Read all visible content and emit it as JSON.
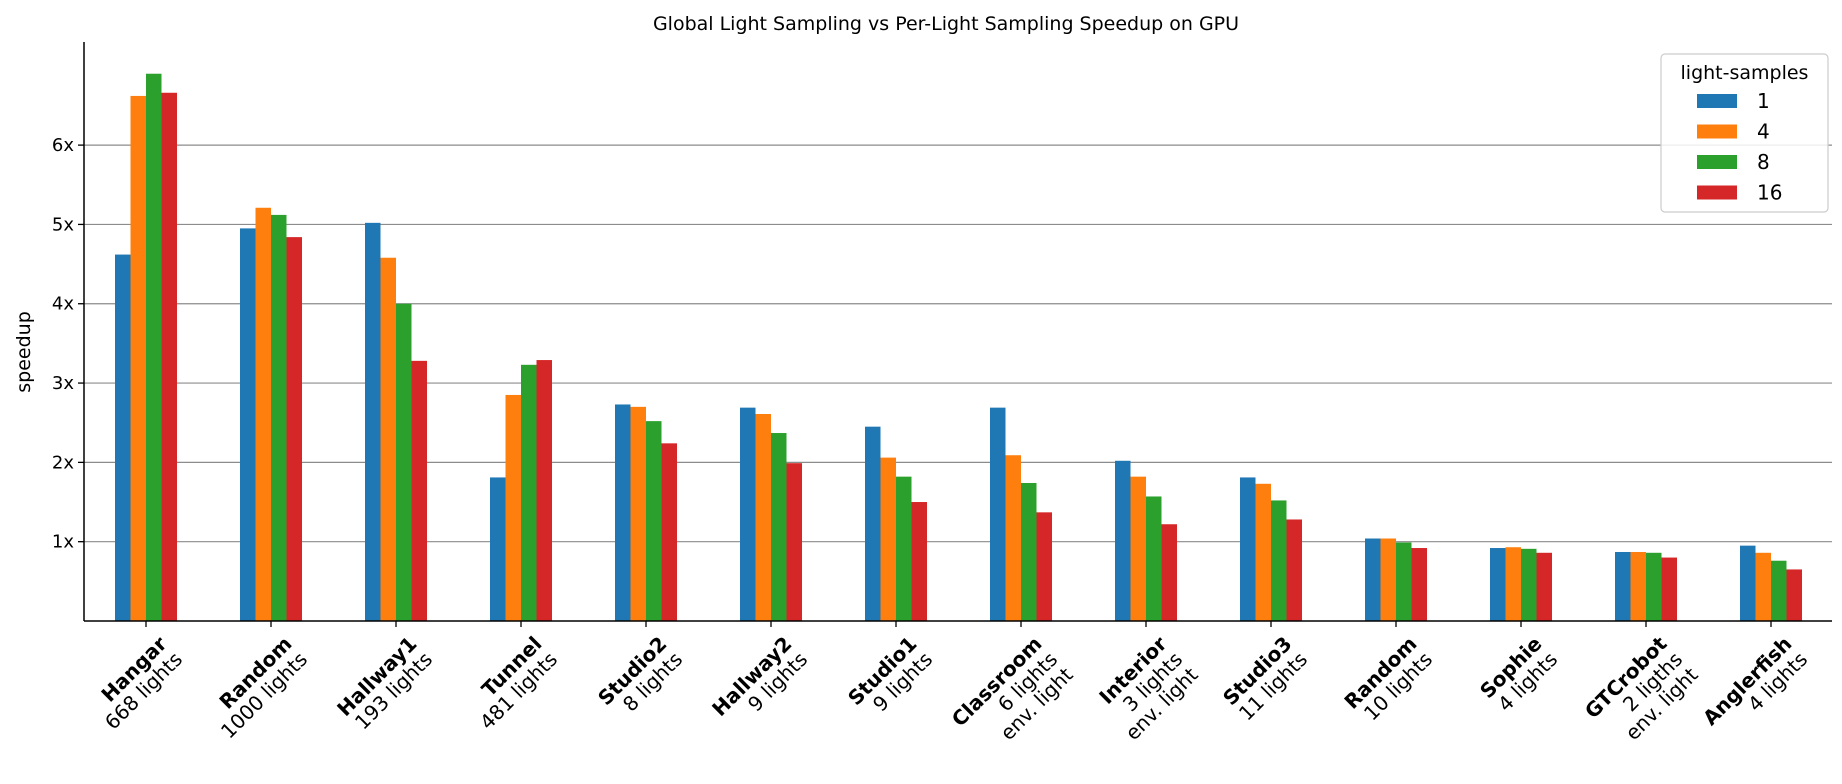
{
  "chart_data": {
    "type": "bar",
    "title": "Global Light Sampling vs Per-Light Sampling Speedup on GPU",
    "xlabel": "",
    "ylabel": "speedup",
    "ylim": [
      0,
      7.3
    ],
    "yticks": [
      {
        "value": 1,
        "label": "1x"
      },
      {
        "value": 2,
        "label": "2x"
      },
      {
        "value": 3,
        "label": "3x"
      },
      {
        "value": 4,
        "label": "4x"
      },
      {
        "value": 5,
        "label": "5x"
      },
      {
        "value": 6,
        "label": "6x"
      }
    ],
    "grid": "horizontal",
    "legend": {
      "title": "light-samples",
      "placement": "top-right"
    },
    "categories": [
      {
        "name": "Hangar",
        "sub": [
          "668 lights"
        ]
      },
      {
        "name": "Random",
        "sub": [
          "1000 lights"
        ]
      },
      {
        "name": "Hallway1",
        "sub": [
          "193 lights"
        ]
      },
      {
        "name": "Tunnel",
        "sub": [
          "481 lights"
        ]
      },
      {
        "name": "Studio2",
        "sub": [
          "8 lights"
        ]
      },
      {
        "name": "Hallway2",
        "sub": [
          "9 lights"
        ]
      },
      {
        "name": "Studio1",
        "sub": [
          "9 lights"
        ]
      },
      {
        "name": "Classroom",
        "sub": [
          "6 lights",
          "env. light"
        ]
      },
      {
        "name": "Interior",
        "sub": [
          "3 lights",
          "env. light"
        ]
      },
      {
        "name": "Studio3",
        "sub": [
          "11 lights"
        ]
      },
      {
        "name": "Random",
        "sub": [
          "10 lights"
        ]
      },
      {
        "name": "Sophie",
        "sub": [
          "4 lights"
        ]
      },
      {
        "name": "GTCrobot",
        "sub": [
          "2 ligths",
          "env. light"
        ]
      },
      {
        "name": "Anglerfish",
        "sub": [
          "4 lights"
        ]
      }
    ],
    "series": [
      {
        "name": "1",
        "color": "#1f77b4",
        "values": [
          4.62,
          4.95,
          5.02,
          1.81,
          2.73,
          2.69,
          2.45,
          2.69,
          2.02,
          1.81,
          1.04,
          0.92,
          0.87,
          0.95
        ]
      },
      {
        "name": "4",
        "color": "#ff7f0e",
        "values": [
          6.62,
          5.21,
          4.58,
          2.85,
          2.7,
          2.61,
          2.06,
          2.09,
          1.82,
          1.73,
          1.04,
          0.93,
          0.87,
          0.86
        ]
      },
      {
        "name": "8",
        "color": "#2ca02c",
        "values": [
          6.9,
          5.12,
          4.0,
          3.23,
          2.52,
          2.37,
          1.82,
          1.74,
          1.57,
          1.52,
          0.99,
          0.91,
          0.86,
          0.76
        ]
      },
      {
        "name": "16",
        "color": "#d62728",
        "values": [
          6.66,
          4.84,
          3.28,
          3.29,
          2.24,
          1.99,
          1.5,
          1.37,
          1.22,
          1.28,
          0.92,
          0.86,
          0.8,
          0.65
        ]
      }
    ]
  }
}
